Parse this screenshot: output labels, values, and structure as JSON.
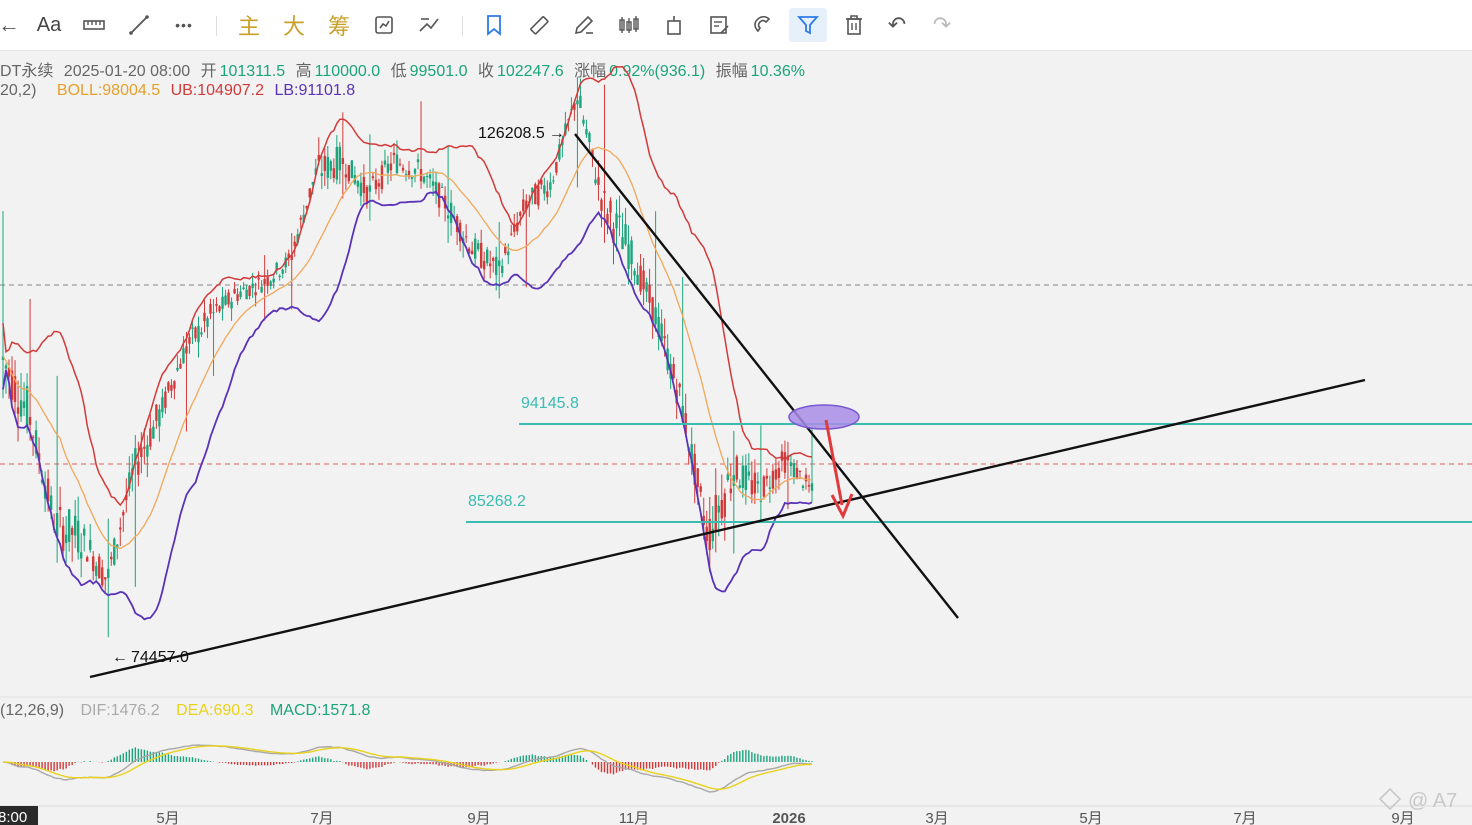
{
  "toolbar": {
    "items": [
      {
        "name": "back-arrow-icon",
        "label": "←"
      },
      {
        "name": "text-tool",
        "label": "Aa"
      },
      {
        "name": "ruler-icon",
        "label": ""
      },
      {
        "name": "line-draw-icon",
        "label": ""
      },
      {
        "name": "more-icon",
        "label": "•••"
      },
      {
        "name": "main-indicator-button",
        "label": "主"
      },
      {
        "name": "big-button",
        "label": "大"
      },
      {
        "name": "chips-button",
        "label": "筹"
      },
      {
        "name": "replay-icon",
        "label": ""
      },
      {
        "name": "compare-icon",
        "label": ""
      },
      {
        "name": "bookmark-icon",
        "label": ""
      },
      {
        "name": "measure-icon",
        "label": ""
      },
      {
        "name": "pencil-icon",
        "label": ""
      },
      {
        "name": "candles-icon",
        "label": ""
      },
      {
        "name": "copy-icon",
        "label": ""
      },
      {
        "name": "note-icon",
        "label": ""
      },
      {
        "name": "magnet-icon",
        "label": ""
      },
      {
        "name": "filter-icon",
        "label": ""
      },
      {
        "name": "trash-icon",
        "label": ""
      },
      {
        "name": "undo-icon",
        "label": "↶"
      },
      {
        "name": "redo-icon",
        "label": "↷"
      }
    ]
  },
  "ohlc_line": {
    "symbol": "DT永续",
    "date": "2025-01-20 08:00",
    "open_label": "开",
    "open": "101311.5",
    "high_label": "高",
    "high": "110000.0",
    "low_label": "低",
    "low": "99501.0",
    "close_label": "收",
    "close": "102247.6",
    "change_label": "涨幅",
    "change": "0.92%(936.1)",
    "amplitude_label": "振幅",
    "amplitude": "10.36%"
  },
  "boll_line": {
    "params": "20,2)",
    "boll": "BOLL:98004.5",
    "ub": "UB:104907.2",
    "lb": "LB:91101.8"
  },
  "macd_line": {
    "params": "(12,26,9)",
    "dif": "DIF:1476.2",
    "dea": "DEA:690.3",
    "macd": "MACD:1571.8"
  },
  "watermark": "@ A7",
  "time_cursor": "8:00",
  "colors": {
    "up": "#1aa57c",
    "down": "#d23a3a",
    "boll_mid": "#f0a85a",
    "ub": "#d23a3a",
    "lb": "#5a33b8",
    "level": "#3bbcb0",
    "accent": "#2d7be5"
  },
  "chart_data": {
    "type": "candlestick",
    "x_ticks": [
      "5月",
      "7月",
      "9月",
      "11月",
      "2026",
      "3月",
      "5月",
      "7月",
      "9月"
    ],
    "price_levels": [
      {
        "label": "94145.8",
        "value": 94145.8
      },
      {
        "label": "85268.2",
        "value": 85268.2
      }
    ],
    "annotations": [
      {
        "label": "126208.5",
        "value": 126208.5
      },
      {
        "label": "74457.0",
        "value": 74457.0
      }
    ],
    "ohlc_samples": [
      [
        111000,
        114000,
        96000,
        100000
      ],
      [
        101000,
        106000,
        93000,
        95000
      ],
      [
        95000,
        99000,
        82000,
        85000
      ],
      [
        85000,
        90000,
        78000,
        84000
      ],
      [
        84000,
        86000,
        74457,
        80000
      ],
      [
        80000,
        92000,
        79000,
        90000
      ],
      [
        90000,
        97000,
        88000,
        95000
      ],
      [
        95000,
        103000,
        93000,
        101000
      ],
      [
        101000,
        106000,
        98000,
        104000
      ],
      [
        104000,
        107000,
        100000,
        106000
      ],
      [
        106000,
        110000,
        103000,
        107000
      ],
      [
        107000,
        112000,
        104000,
        109000
      ],
      [
        109000,
        118000,
        106000,
        117000
      ],
      [
        117000,
        123000,
        114000,
        118000
      ],
      [
        118000,
        121000,
        112000,
        115000
      ],
      [
        115000,
        120000,
        111000,
        118000
      ],
      [
        118000,
        124000,
        115000,
        117000
      ],
      [
        117000,
        120000,
        110000,
        114000
      ],
      [
        114000,
        117000,
        107000,
        110000
      ],
      [
        110000,
        113000,
        105000,
        108000
      ],
      [
        108000,
        115000,
        106000,
        114000
      ],
      [
        114000,
        118000,
        110000,
        116000
      ],
      [
        116000,
        126208,
        115000,
        124000
      ],
      [
        124000,
        125500,
        110000,
        114000
      ],
      [
        114000,
        117000,
        106000,
        110000
      ],
      [
        110000,
        114000,
        102000,
        104000
      ],
      [
        104000,
        108000,
        95000,
        96000
      ],
      [
        96000,
        99000,
        81000,
        84000
      ],
      [
        84000,
        94000,
        82000,
        90000
      ],
      [
        90000,
        94500,
        85000,
        88000
      ],
      [
        88000,
        93000,
        86000,
        91000
      ],
      [
        91000,
        94145,
        87000,
        88000
      ]
    ]
  }
}
